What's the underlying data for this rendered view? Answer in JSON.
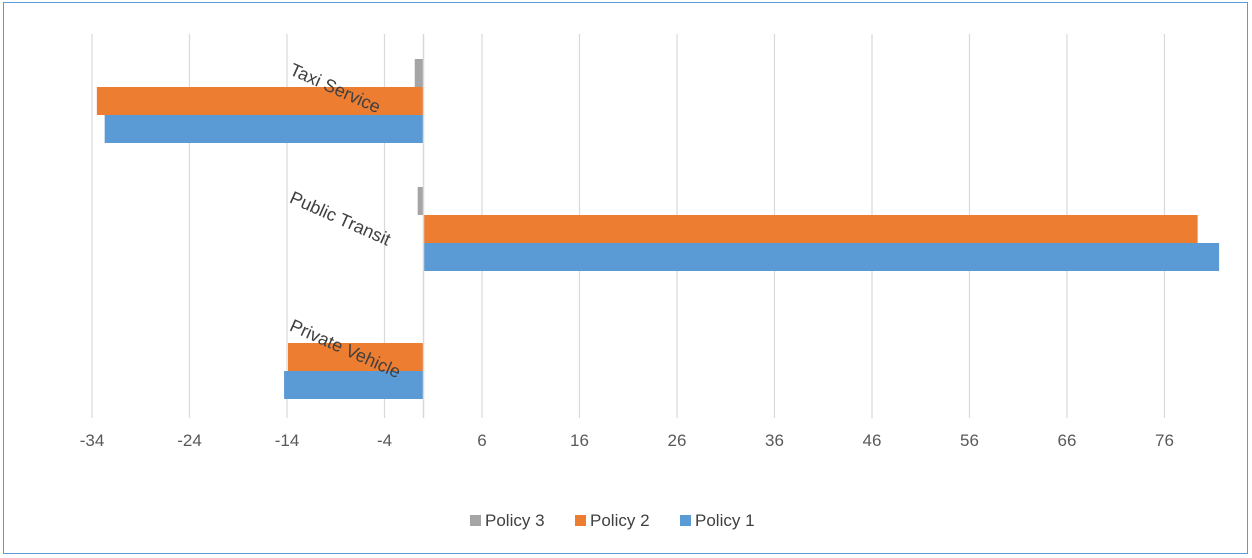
{
  "chart_data": {
    "type": "bar",
    "orientation": "horizontal",
    "categories": [
      "Private Vehicle",
      "Public Transit",
      "Taxi Service"
    ],
    "series": [
      {
        "name": "Policy 1",
        "color": "#5b9bd5",
        "values": [
          -14.3,
          81.6,
          -32.7
        ]
      },
      {
        "name": "Policy 2",
        "color": "#ed7d31",
        "values": [
          -13.9,
          79.4,
          -33.5
        ]
      },
      {
        "name": "Policy 3",
        "color": "#a5a5a5",
        "values": [
          0,
          -0.6,
          -0.9
        ]
      }
    ],
    "x_ticks": [
      "-34",
      "-24",
      "-14",
      "-4",
      "6",
      "16",
      "26",
      "36",
      "46",
      "56",
      "66",
      "76"
    ],
    "x_tick_values": [
      -34,
      -24,
      -14,
      -4,
      6,
      16,
      26,
      36,
      46,
      56,
      66,
      76
    ],
    "xlim": [
      -38,
      86
    ],
    "grid": true,
    "legend_position": "bottom",
    "legend_order": [
      "Policy 3",
      "Policy 2",
      "Policy 1"
    ],
    "title": "",
    "xlabel": "",
    "ylabel": ""
  }
}
